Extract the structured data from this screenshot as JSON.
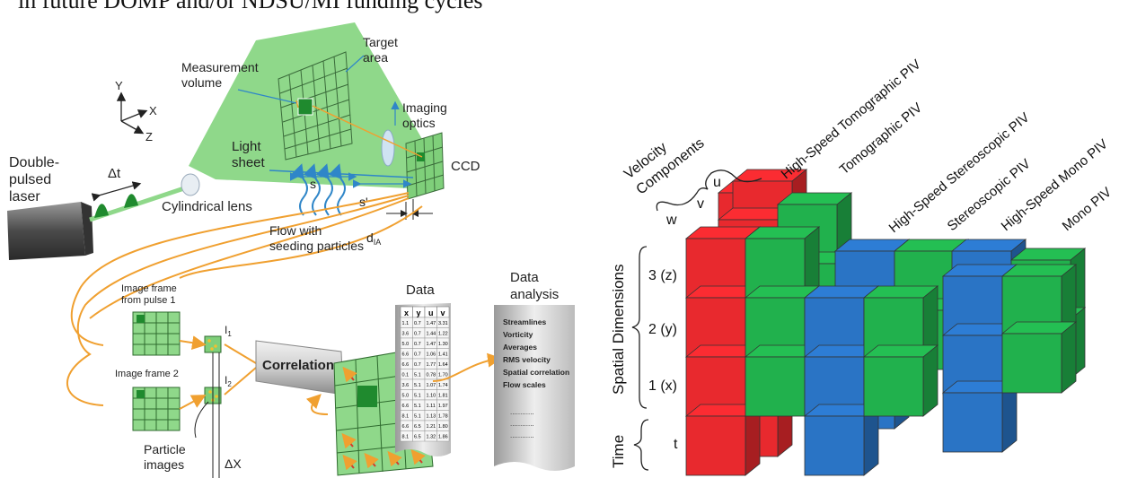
{
  "top_caption": "in future DOMP and/or NDSU/MI funding cycles",
  "left": {
    "axes": {
      "y": "Y",
      "x": "X",
      "z": "Z"
    },
    "laser": "Double-\npulsed\nlaser",
    "delta_t": "Δt",
    "cylindrical_lens": "Cylindrical lens",
    "measurement_volume": "Measurement\nvolume",
    "target_area": "Target\narea",
    "imaging_optics": "Imaging\noptics",
    "light_sheet": "Light\nsheet",
    "s": "s",
    "s_prime": "s'",
    "ccd": "CCD",
    "d_ia": "d",
    "d_ia_sub": "IA",
    "flow": "Flow with\nseeding particles",
    "frame1": "Image frame\nfrom pulse 1",
    "frame2": "Image frame 2",
    "i1": "I",
    "i1_sub": "1",
    "i2": "I",
    "i2_sub": "2",
    "correlation": "Correlation",
    "particle_images": "Particle\nimages",
    "delta_x": "ΔX",
    "data_title": "Data",
    "data_analysis_title": "Data\nanalysis",
    "data_headers": [
      "x",
      "y",
      "u",
      "v"
    ],
    "data_rows": [
      [
        "1.1",
        "0.7",
        "1.47",
        "3.31"
      ],
      [
        "3.6",
        "0.7",
        "1.44",
        "1.22"
      ],
      [
        "5.0",
        "0.7",
        "1.47",
        "1.30"
      ],
      [
        "6.6",
        "0.7",
        "1.06",
        "1.41"
      ],
      [
        "6.6",
        "0.7",
        "1.77",
        "1.64"
      ],
      [
        "0.1",
        "5.1",
        "0.78",
        "1.70"
      ],
      [
        "3.6",
        "5.1",
        "1.07",
        "1.74"
      ],
      [
        "5.0",
        "5.1",
        "1.10",
        "1.81"
      ],
      [
        "6.6",
        "5.1",
        "1.11",
        "1.97"
      ],
      [
        "8.1",
        "5.1",
        "1.13",
        "1.78"
      ],
      [
        "6.6",
        "6.5",
        "1.21",
        "1.80"
      ],
      [
        "8.1",
        "6.5",
        "1.32",
        "1.86"
      ]
    ],
    "analysis_items": [
      "Streamlines",
      "Vorticity",
      "Averages",
      "RMS velocity",
      "Spatial correlation",
      "Flow scales"
    ]
  },
  "right": {
    "velocity_label": "Velocity\nComponents",
    "components": [
      "w",
      "v",
      "u"
    ],
    "spatial_label": "Spatial Dimensions",
    "dims": [
      "3 (z)",
      "2 (y)",
      "1 (x)"
    ],
    "time_label": "Time",
    "t": "t",
    "methods": [
      "High-Speed Tomographic PIV",
      "Tomographic PIV",
      "High-Speed Stereoscopic PIV",
      "Stereoscopic PIV",
      "High-Speed Mono PIV",
      "Mono PIV"
    ],
    "colors": {
      "red": "#e8292e",
      "green": "#21b14d",
      "blue": "#2a74c5",
      "light_green": "#8fd88a",
      "orange": "#f0a030"
    }
  }
}
